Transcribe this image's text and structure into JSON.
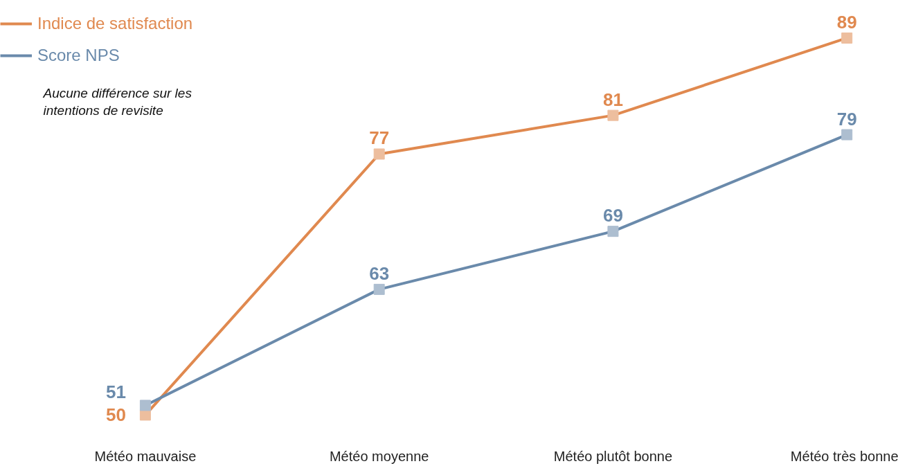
{
  "chart_data": {
    "type": "line",
    "categories": [
      "Météo mauvaise",
      "Météo moyenne",
      "Météo plutôt bonne",
      "Météo très bonne"
    ],
    "series": [
      {
        "name": "Indice de satisfaction",
        "color": "#e0894f",
        "values": [
          50,
          77,
          81,
          89
        ]
      },
      {
        "name": "Score NPS",
        "color": "#6a8aab",
        "values": [
          51,
          63,
          69,
          79
        ]
      }
    ],
    "marker": "square",
    "line_style": "solid",
    "data_labels": true,
    "legend": "top left",
    "grid": false,
    "annotations": [
      "Aucune différence sur les intentions de revisite"
    ]
  }
}
